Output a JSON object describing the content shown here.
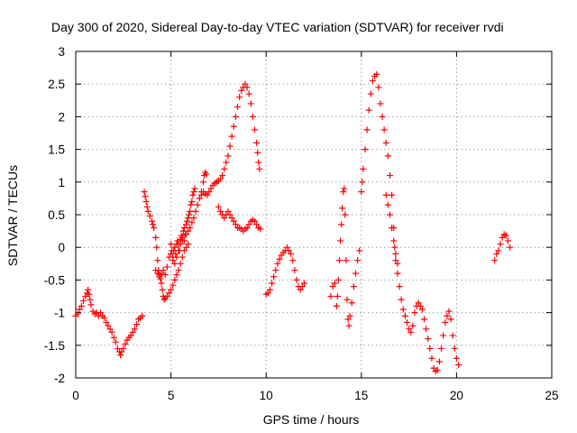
{
  "chart_data": {
    "type": "scatter",
    "title": "Day 300 of 2020, Sidereal Day-to-day VTEC variation (SDTVAR) for receiver rvdi",
    "xlabel": "GPS time / hours",
    "ylabel": "SDTVAR / TECUs",
    "xlim": [
      0,
      25
    ],
    "ylim": [
      -2,
      3
    ],
    "xticks": [
      "0",
      "5",
      "10",
      "15",
      "20",
      "25"
    ],
    "yticks": [
      "-2",
      "-1.5",
      "-1",
      "-0.5",
      "0",
      "0.5",
      "1",
      "1.5",
      "2",
      "2.5",
      "3"
    ],
    "xtick_values": [
      0,
      5,
      10,
      15,
      20,
      25
    ],
    "ytick_values": [
      -2,
      -1.5,
      -1,
      -0.5,
      0,
      0.5,
      1,
      1.5,
      2,
      2.5,
      3
    ],
    "grid": true,
    "marker": "plus",
    "color": "#ff0000",
    "series": [
      {
        "points": [
          [
            0.0,
            -1.05
          ],
          [
            0.1,
            -1.02
          ],
          [
            0.2,
            -0.95
          ],
          [
            0.3,
            -0.9
          ],
          [
            0.4,
            -0.82
          ],
          [
            0.5,
            -0.75
          ],
          [
            0.6,
            -0.7
          ],
          [
            0.65,
            -0.65
          ],
          [
            0.7,
            -0.72
          ],
          [
            0.75,
            -0.8
          ],
          [
            0.8,
            -0.88
          ],
          [
            0.9,
            -0.98
          ],
          [
            1.0,
            -1.02
          ],
          [
            1.1,
            -1.0
          ],
          [
            1.2,
            -1.05
          ],
          [
            1.3,
            -1.0
          ],
          [
            1.4,
            -1.05
          ],
          [
            1.5,
            -1.08
          ],
          [
            1.6,
            -1.15
          ],
          [
            1.7,
            -1.2
          ],
          [
            1.8,
            -1.25
          ],
          [
            1.9,
            -1.3
          ],
          [
            2.0,
            -1.38
          ],
          [
            2.1,
            -1.45
          ],
          [
            2.2,
            -1.55
          ],
          [
            2.3,
            -1.6
          ],
          [
            2.35,
            -1.65
          ],
          [
            2.4,
            -1.6
          ],
          [
            2.5,
            -1.55
          ],
          [
            2.6,
            -1.48
          ],
          [
            2.7,
            -1.42
          ],
          [
            2.8,
            -1.38
          ],
          [
            2.9,
            -1.35
          ],
          [
            3.0,
            -1.3
          ],
          [
            3.1,
            -1.25
          ],
          [
            3.2,
            -1.18
          ],
          [
            3.3,
            -1.1
          ],
          [
            3.4,
            -1.08
          ],
          [
            3.5,
            -1.05
          ],
          [
            3.6,
            0.85
          ],
          [
            3.65,
            0.78
          ],
          [
            3.7,
            0.7
          ],
          [
            3.75,
            0.62
          ],
          [
            3.8,
            0.55
          ],
          [
            3.9,
            0.48
          ],
          [
            4.0,
            0.4
          ],
          [
            4.05,
            0.35
          ],
          [
            4.1,
            0.3
          ],
          [
            4.2,
            0.15
          ],
          [
            4.25,
            0.0
          ],
          [
            4.3,
            -0.2
          ],
          [
            4.35,
            -0.35
          ],
          [
            4.4,
            -0.42
          ],
          [
            4.45,
            -0.48
          ],
          [
            4.5,
            -0.55
          ],
          [
            4.55,
            -0.65
          ],
          [
            4.6,
            -0.75
          ],
          [
            4.65,
            -0.8
          ],
          [
            4.7,
            -0.78
          ],
          [
            4.8,
            -0.75
          ],
          [
            4.9,
            -0.7
          ],
          [
            5.0,
            -0.65
          ],
          [
            5.1,
            -0.58
          ],
          [
            5.2,
            -0.5
          ],
          [
            5.3,
            -0.42
          ],
          [
            5.4,
            -0.35
          ],
          [
            5.5,
            -0.25
          ],
          [
            5.6,
            -0.15
          ],
          [
            5.7,
            -0.05
          ],
          [
            5.8,
            0.0
          ],
          [
            5.9,
            0.05
          ],
          [
            4.2,
            -0.35
          ],
          [
            4.3,
            -0.4
          ],
          [
            4.4,
            -0.45
          ],
          [
            4.5,
            -0.4
          ],
          [
            4.6,
            -0.35
          ],
          [
            4.7,
            -0.42
          ],
          [
            4.8,
            -0.3
          ],
          [
            4.9,
            -0.15
          ],
          [
            5.0,
            0.05
          ],
          [
            5.05,
            -0.05
          ],
          [
            5.1,
            -0.15
          ],
          [
            5.15,
            -0.05
          ],
          [
            5.2,
            0.0
          ],
          [
            5.25,
            -0.1
          ],
          [
            5.3,
            0.05
          ],
          [
            5.35,
            0.1
          ],
          [
            5.4,
            0.05
          ],
          [
            5.45,
            -0.05
          ],
          [
            5.5,
            0.12
          ],
          [
            5.55,
            0.18
          ],
          [
            5.6,
            0.1
          ],
          [
            5.65,
            0.25
          ],
          [
            5.7,
            0.3
          ],
          [
            5.75,
            0.2
          ],
          [
            5.8,
            0.35
          ],
          [
            5.85,
            0.4
          ],
          [
            5.9,
            0.45
          ],
          [
            5.95,
            0.5
          ],
          [
            6.0,
            0.55
          ],
          [
            6.05,
            0.65
          ],
          [
            6.1,
            0.7
          ],
          [
            6.15,
            0.8
          ],
          [
            6.2,
            0.85
          ],
          [
            6.25,
            0.9
          ],
          [
            5.0,
            -0.1
          ],
          [
            5.1,
            -0.2
          ],
          [
            5.2,
            -0.25
          ],
          [
            5.3,
            -0.15
          ],
          [
            5.4,
            -0.05
          ],
          [
            5.5,
            0.05
          ],
          [
            5.6,
            0.15
          ],
          [
            5.7,
            0.1
          ],
          [
            5.8,
            0.2
          ],
          [
            5.9,
            0.25
          ],
          [
            6.0,
            0.3
          ],
          [
            6.1,
            0.38
          ],
          [
            6.2,
            0.45
          ],
          [
            6.3,
            0.55
          ],
          [
            6.4,
            0.65
          ],
          [
            6.5,
            0.75
          ],
          [
            6.6,
            0.85
          ],
          [
            6.7,
            1.0
          ],
          [
            6.75,
            1.1
          ],
          [
            6.8,
            1.15
          ],
          [
            6.85,
            1.12
          ],
          [
            6.6,
            0.8
          ],
          [
            6.7,
            0.85
          ],
          [
            6.8,
            0.82
          ],
          [
            6.9,
            0.8
          ],
          [
            7.0,
            0.85
          ],
          [
            7.1,
            0.9
          ],
          [
            7.2,
            0.95
          ],
          [
            7.3,
            0.98
          ],
          [
            7.4,
            1.0
          ],
          [
            7.5,
            1.02
          ],
          [
            7.6,
            1.05
          ],
          [
            7.7,
            1.1
          ],
          [
            7.8,
            1.2
          ],
          [
            7.9,
            1.3
          ],
          [
            8.0,
            1.4
          ],
          [
            8.1,
            1.55
          ],
          [
            8.2,
            1.7
          ],
          [
            8.3,
            1.85
          ],
          [
            8.4,
            2.0
          ],
          [
            8.5,
            2.15
          ],
          [
            8.6,
            2.3
          ],
          [
            8.7,
            2.4
          ],
          [
            8.8,
            2.45
          ],
          [
            8.9,
            2.5
          ],
          [
            9.0,
            2.45
          ],
          [
            9.1,
            2.35
          ],
          [
            9.2,
            2.2
          ],
          [
            9.3,
            2.0
          ],
          [
            9.4,
            1.8
          ],
          [
            9.5,
            1.6
          ],
          [
            9.55,
            1.45
          ],
          [
            9.6,
            1.3
          ],
          [
            9.65,
            1.2
          ],
          [
            7.5,
            0.62
          ],
          [
            7.6,
            0.55
          ],
          [
            7.7,
            0.5
          ],
          [
            7.8,
            0.45
          ],
          [
            7.9,
            0.5
          ],
          [
            8.0,
            0.55
          ],
          [
            8.1,
            0.5
          ],
          [
            8.2,
            0.45
          ],
          [
            8.3,
            0.4
          ],
          [
            8.4,
            0.35
          ],
          [
            8.5,
            0.3
          ],
          [
            8.6,
            0.3
          ],
          [
            8.7,
            0.28
          ],
          [
            8.8,
            0.25
          ],
          [
            8.9,
            0.28
          ],
          [
            9.0,
            0.3
          ],
          [
            9.1,
            0.35
          ],
          [
            9.2,
            0.4
          ],
          [
            9.3,
            0.42
          ],
          [
            9.4,
            0.4
          ],
          [
            9.5,
            0.35
          ],
          [
            9.6,
            0.3
          ],
          [
            9.7,
            0.28
          ],
          [
            10.0,
            -0.72
          ],
          [
            10.1,
            -0.7
          ],
          [
            10.2,
            -0.65
          ],
          [
            10.3,
            -0.55
          ],
          [
            10.4,
            -0.45
          ],
          [
            10.5,
            -0.35
          ],
          [
            10.6,
            -0.25
          ],
          [
            10.7,
            -0.18
          ],
          [
            10.8,
            -0.12
          ],
          [
            10.9,
            -0.08
          ],
          [
            11.0,
            -0.05
          ],
          [
            11.1,
            0.0
          ],
          [
            11.2,
            -0.05
          ],
          [
            11.3,
            -0.1
          ],
          [
            11.4,
            -0.2
          ],
          [
            11.5,
            -0.35
          ],
          [
            11.6,
            -0.5
          ],
          [
            11.7,
            -0.6
          ],
          [
            11.8,
            -0.65
          ],
          [
            11.9,
            -0.6
          ],
          [
            12.0,
            -0.55
          ],
          [
            13.4,
            -0.75
          ],
          [
            13.5,
            -0.6
          ],
          [
            13.6,
            -0.55
          ],
          [
            13.7,
            -0.9
          ],
          [
            13.75,
            -0.75
          ],
          [
            13.8,
            -0.5
          ],
          [
            13.85,
            -0.2
          ],
          [
            13.9,
            0.1
          ],
          [
            13.95,
            0.35
          ],
          [
            14.0,
            0.6
          ],
          [
            14.05,
            0.85
          ],
          [
            14.1,
            0.9
          ],
          [
            14.15,
            0.5
          ],
          [
            14.2,
            -0.2
          ],
          [
            14.25,
            -0.8
          ],
          [
            14.3,
            -1.1
          ],
          [
            14.35,
            -1.2
          ],
          [
            14.4,
            -1.05
          ],
          [
            14.5,
            -0.85
          ],
          [
            14.6,
            -0.6
          ],
          [
            14.7,
            -0.4
          ],
          [
            14.8,
            -0.2
          ],
          [
            14.9,
            -0.05
          ],
          [
            15.0,
            0.85
          ],
          [
            15.05,
            1.0
          ],
          [
            15.1,
            1.2
          ],
          [
            15.2,
            1.5
          ],
          [
            15.3,
            1.8
          ],
          [
            15.4,
            2.1
          ],
          [
            15.5,
            2.35
          ],
          [
            15.6,
            2.55
          ],
          [
            15.7,
            2.62
          ],
          [
            15.8,
            2.65
          ],
          [
            15.9,
            2.45
          ],
          [
            16.0,
            2.2
          ],
          [
            16.1,
            2.0
          ],
          [
            16.2,
            1.8
          ],
          [
            16.3,
            1.6
          ],
          [
            16.4,
            1.4
          ],
          [
            16.5,
            1.1
          ],
          [
            16.6,
            0.8
          ],
          [
            16.7,
            0.3
          ],
          [
            16.75,
            0.0
          ],
          [
            16.8,
            -0.2
          ],
          [
            16.9,
            -0.4
          ],
          [
            17.0,
            -0.6
          ],
          [
            17.1,
            -0.8
          ],
          [
            17.2,
            -0.95
          ],
          [
            17.3,
            -1.05
          ],
          [
            17.4,
            -1.15
          ],
          [
            17.5,
            -1.25
          ],
          [
            17.6,
            -1.3
          ],
          [
            17.7,
            -1.2
          ],
          [
            17.8,
            -1.0
          ],
          [
            17.9,
            -0.9
          ],
          [
            18.0,
            -0.85
          ],
          [
            18.1,
            -0.9
          ],
          [
            18.2,
            -0.95
          ],
          [
            18.3,
            -1.1
          ],
          [
            18.4,
            -1.25
          ],
          [
            18.5,
            -1.4
          ],
          [
            18.6,
            -1.55
          ],
          [
            18.7,
            -1.7
          ],
          [
            18.8,
            -1.85
          ],
          [
            18.9,
            -1.9
          ],
          [
            19.0,
            -1.88
          ],
          [
            19.1,
            -1.75
          ],
          [
            19.2,
            -1.55
          ],
          [
            19.3,
            -1.35
          ],
          [
            19.4,
            -1.15
          ],
          [
            19.5,
            -1.05
          ],
          [
            19.6,
            -0.98
          ],
          [
            19.7,
            -1.1
          ],
          [
            19.8,
            -1.35
          ],
          [
            19.9,
            -1.55
          ],
          [
            20.0,
            -1.7
          ],
          [
            20.1,
            -1.8
          ],
          [
            16.3,
            0.8
          ],
          [
            16.4,
            0.65
          ],
          [
            16.5,
            0.5
          ],
          [
            16.6,
            0.3
          ],
          [
            16.7,
            0.1
          ],
          [
            16.8,
            -0.1
          ],
          [
            16.9,
            -0.25
          ],
          [
            22.0,
            -0.2
          ],
          [
            22.1,
            -0.1
          ],
          [
            22.2,
            -0.05
          ],
          [
            22.3,
            0.05
          ],
          [
            22.4,
            0.15
          ],
          [
            22.5,
            0.2
          ],
          [
            22.6,
            0.18
          ],
          [
            22.7,
            0.1
          ],
          [
            22.8,
            0.0
          ]
        ]
      }
    ]
  }
}
